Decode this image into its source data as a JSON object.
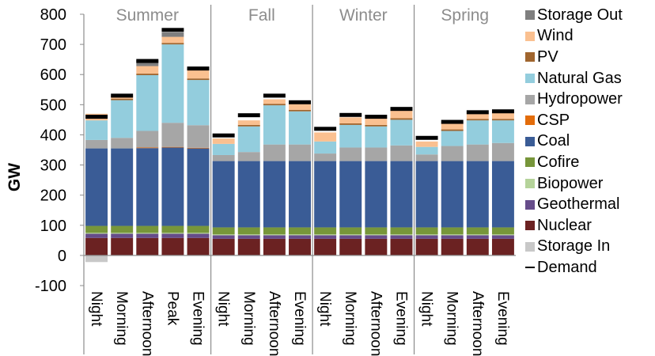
{
  "chart_data": {
    "type": "bar",
    "stacked": true,
    "ylabel": "GW",
    "ylim": [
      -100,
      800
    ],
    "yticks": [
      -100,
      0,
      100,
      200,
      300,
      400,
      500,
      600,
      700,
      800
    ],
    "groups": [
      {
        "name": "Summer",
        "categories": [
          "Night",
          "Morning",
          "Afternoon",
          "Peak",
          "Evening"
        ]
      },
      {
        "name": "Fall",
        "categories": [
          "Night",
          "Morning",
          "Afternoon",
          "Evening"
        ]
      },
      {
        "name": "Winter",
        "categories": [
          "Night",
          "Morning",
          "Afternoon",
          "Evening"
        ]
      },
      {
        "name": "Spring",
        "categories": [
          "Night",
          "Morning",
          "Afternoon",
          "Evening"
        ]
      }
    ],
    "categories": [
      "Night",
      "Morning",
      "Afternoon",
      "Peak",
      "Evening",
      "Night",
      "Morning",
      "Afternoon",
      "Evening",
      "Night",
      "Morning",
      "Afternoon",
      "Evening",
      "Night",
      "Morning",
      "Afternoon",
      "Evening"
    ],
    "series": [
      {
        "name": "Storage In",
        "color": "#c8c8c8",
        "values": [
          -22,
          0,
          0,
          0,
          0,
          0,
          0,
          0,
          0,
          0,
          0,
          0,
          0,
          0,
          0,
          0,
          0
        ]
      },
      {
        "name": "Nuclear",
        "color": "#6b2222",
        "values": [
          58,
          58,
          58,
          58,
          58,
          55,
          55,
          55,
          55,
          55,
          55,
          55,
          55,
          55,
          55,
          55,
          55
        ]
      },
      {
        "name": "Geothermal",
        "color": "#664c8a",
        "values": [
          14,
          14,
          14,
          14,
          14,
          12,
          12,
          12,
          12,
          12,
          12,
          12,
          12,
          12,
          12,
          12,
          12
        ]
      },
      {
        "name": "Biopower",
        "color": "#b5d39a",
        "values": [
          3,
          3,
          3,
          3,
          3,
          3,
          3,
          3,
          3,
          3,
          3,
          3,
          3,
          3,
          3,
          3,
          3
        ]
      },
      {
        "name": "Cofire",
        "color": "#77963a",
        "values": [
          23,
          23,
          23,
          23,
          23,
          23,
          23,
          23,
          23,
          23,
          23,
          23,
          23,
          23,
          23,
          23,
          23
        ]
      },
      {
        "name": "Coal",
        "color": "#3a5c96",
        "values": [
          257,
          257,
          258,
          260,
          257,
          220,
          220,
          220,
          220,
          220,
          220,
          220,
          220,
          220,
          220,
          220,
          220
        ]
      },
      {
        "name": "CSP",
        "color": "#e36c0a",
        "values": [
          0,
          0,
          2,
          2,
          2,
          0,
          0,
          0,
          0,
          0,
          0,
          0,
          0,
          0,
          0,
          0,
          0
        ]
      },
      {
        "name": "Hydropower",
        "color": "#a6a6a6",
        "values": [
          28,
          35,
          55,
          80,
          75,
          20,
          30,
          55,
          55,
          25,
          45,
          45,
          52,
          22,
          50,
          55,
          60
        ]
      },
      {
        "name": "Natural Gas",
        "color": "#93cddd",
        "values": [
          65,
          125,
          185,
          260,
          150,
          37,
          85,
          130,
          110,
          40,
          75,
          70,
          85,
          25,
          50,
          80,
          75
        ]
      },
      {
        "name": "PV",
        "color": "#a0652e",
        "values": [
          0,
          5,
          5,
          5,
          5,
          0,
          5,
          5,
          5,
          0,
          5,
          5,
          5,
          0,
          5,
          5,
          5
        ]
      },
      {
        "name": "Wind",
        "color": "#fac090",
        "values": [
          22,
          10,
          25,
          20,
          30,
          18,
          15,
          15,
          25,
          30,
          20,
          25,
          28,
          18,
          22,
          20,
          25
        ]
      },
      {
        "name": "Storage Out",
        "color": "#7f7f7f",
        "values": [
          0,
          0,
          20,
          15,
          5,
          0,
          0,
          0,
          0,
          0,
          0,
          0,
          0,
          0,
          0,
          0,
          0
        ]
      }
    ],
    "demand": {
      "name": "Demand",
      "color": "#000000",
      "values": [
        460,
        530,
        645,
        748,
        620,
        398,
        465,
        530,
        508,
        420,
        466,
        460,
        486,
        390,
        443,
        475,
        478
      ]
    },
    "legend_order": [
      "Storage Out",
      "Wind",
      "PV",
      "Natural Gas",
      "Hydropower",
      "CSP",
      "Coal",
      "Cofire",
      "Biopower",
      "Geothermal",
      "Nuclear",
      "Storage In",
      "Demand"
    ],
    "legend_position": "right",
    "grid": false
  }
}
